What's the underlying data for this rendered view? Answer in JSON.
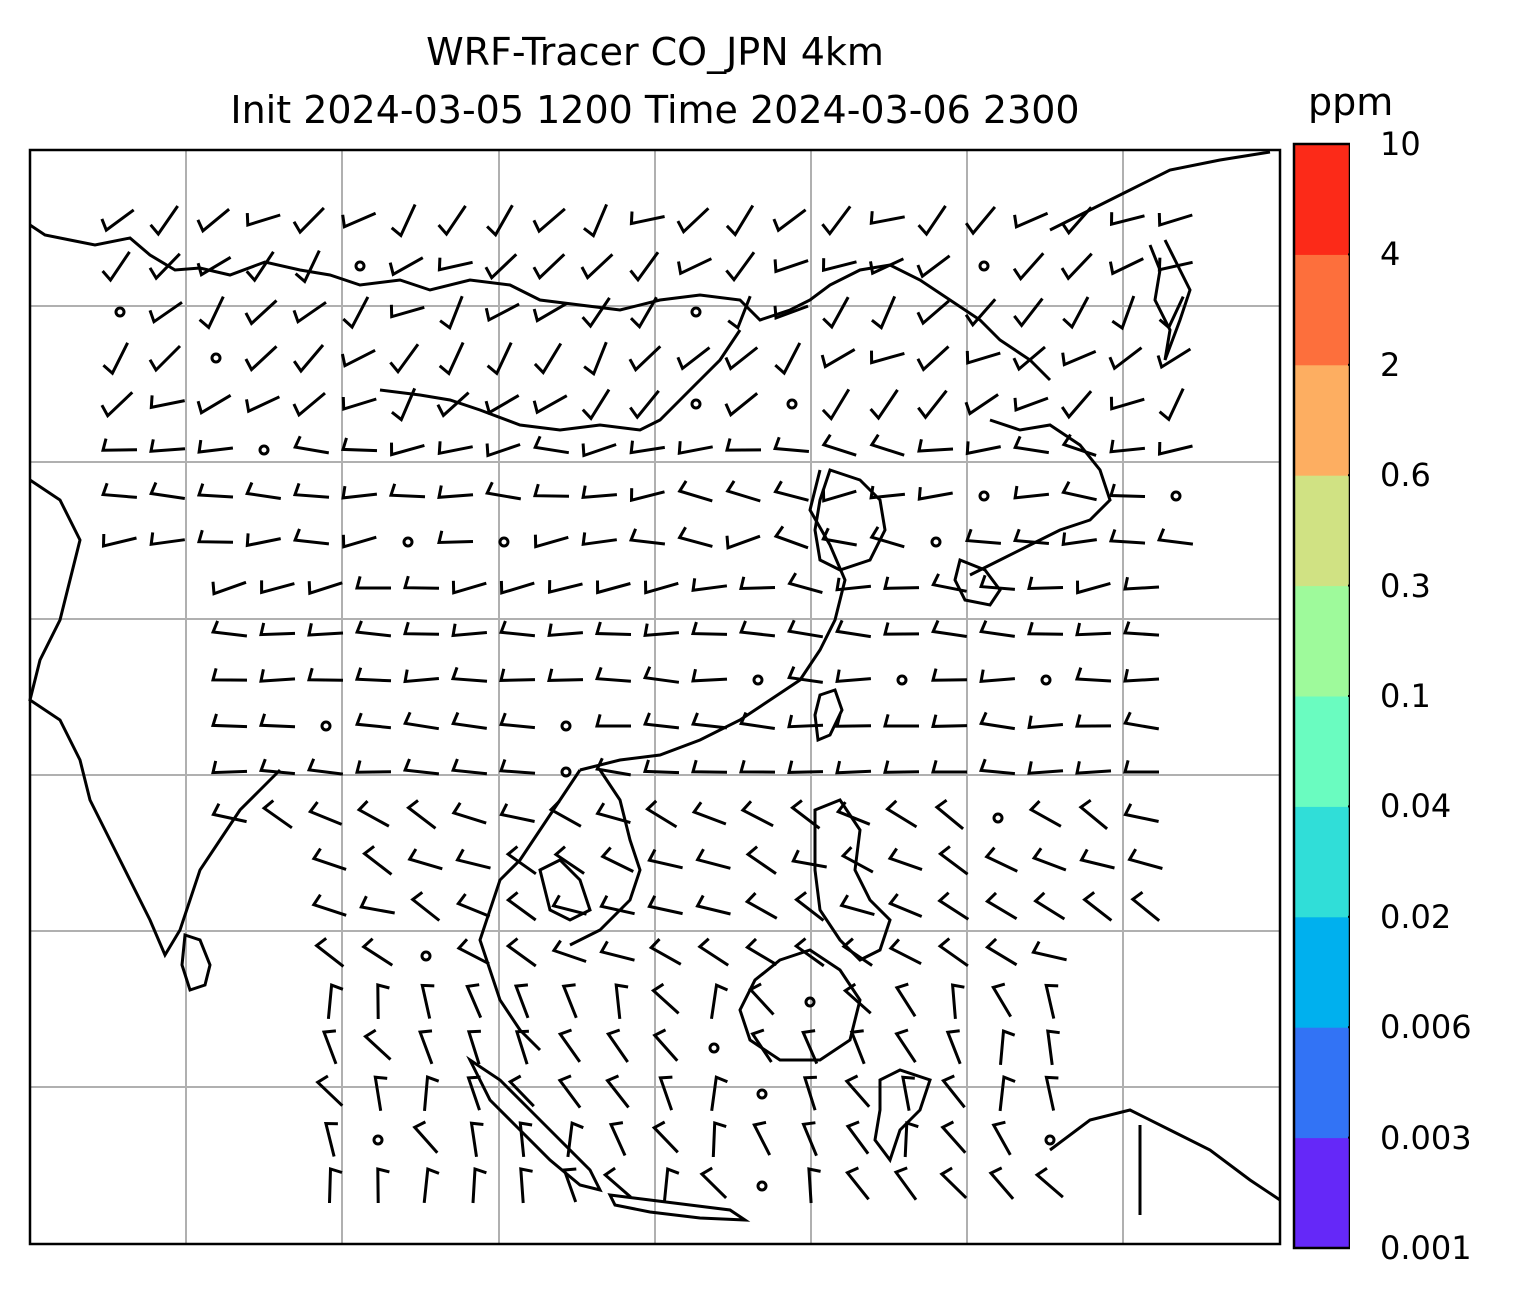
{
  "title": {
    "line1": "WRF-Tracer CO_JPN 4km",
    "line2": "Init 2024-03-05 1200 Time 2024-03-06 2300"
  },
  "colorbar": {
    "unit": "ppm",
    "levels": [
      "0.001",
      "0.003",
      "0.006",
      "0.02",
      "0.04",
      "0.1",
      "0.3",
      "0.6",
      "2",
      "4",
      "10"
    ],
    "colors": [
      "#6528f8",
      "#3273f5",
      "#00b0ee",
      "#30ded8",
      "#6afcc0",
      "#9efa9b",
      "#d0e283",
      "#fdae61",
      "#fd6f3c",
      "#fc2a18"
    ]
  },
  "map": {
    "frame_color": "#000000",
    "grid_color": "#b0b0b0",
    "coastline_color": "#000000",
    "wind_barb_color": "#000000"
  }
}
